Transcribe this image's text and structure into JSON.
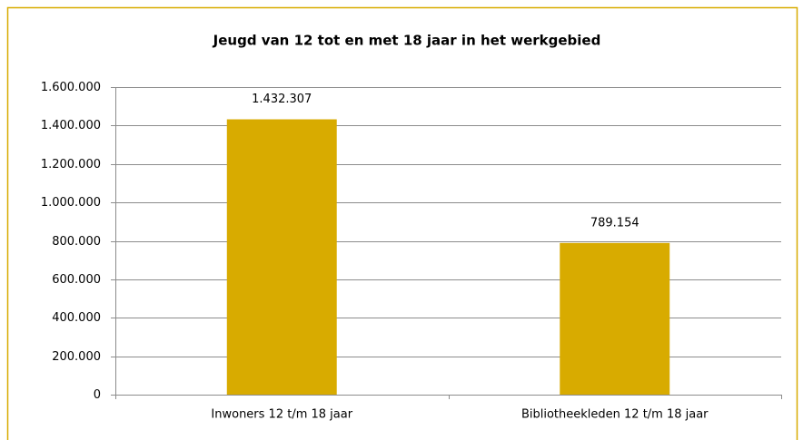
{
  "chart_data": {
    "type": "bar",
    "title": "Jeugd van 12 tot en met 18 jaar in het werkgebied",
    "categories": [
      "Inwoners 12 t/m 18 jaar",
      "Bibliotheekleden 12 t/m 18 jaar"
    ],
    "values": [
      1432307,
      789154
    ],
    "value_labels": [
      "1.432.307",
      "789.154"
    ],
    "color": "#d8ab00",
    "ylim": [
      0,
      1600000
    ],
    "yticks": [
      0,
      {
        "value": 200000,
        "label": "200.000"
      },
      {
        "value": 400000,
        "label": "400.000"
      },
      {
        "value": 600000,
        "label": "600.000"
      },
      {
        "value": 800000,
        "label": "800.000"
      },
      {
        "value": 1000000,
        "label": "1.000.000"
      },
      {
        "value": 1200000,
        "label": "1.200.000"
      },
      {
        "value": 1400000,
        "label": "1.400.000"
      },
      {
        "value": 1600000,
        "label": "1.600.000"
      }
    ],
    "grid": true
  }
}
